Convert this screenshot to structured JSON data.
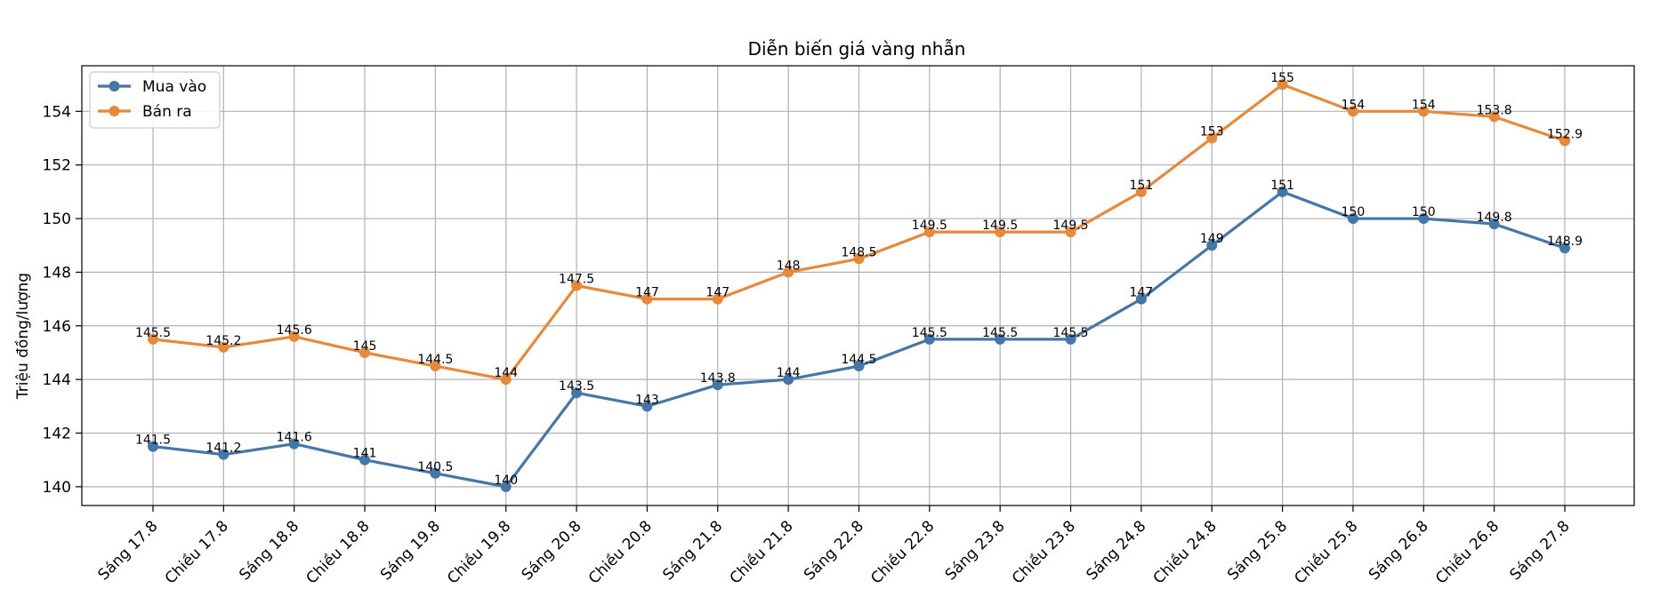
{
  "chart_data": {
    "type": "line",
    "title": "Diễn biến giá vàng nhẫn",
    "xlabel": "",
    "ylabel": "Triệu đồng/lượng",
    "categories": [
      "Sáng 17.8",
      "Chiều 17.8",
      "Sáng 18.8",
      "Chiều 18.8",
      "Sáng 19.8",
      "Chiều 19.8",
      "Sáng 20.8",
      "Chiều 20.8",
      "Sáng 21.8",
      "Chiều 21.8",
      "Sáng 22.8",
      "Chiều 22.8",
      "Sáng 23.8",
      "Chiều 23.8",
      "Sáng 24.8",
      "Chiều 24.8",
      "Sáng 25.8",
      "Chiều 25.8",
      "Sáng 26.8",
      "Chiều 26.8",
      "Sáng 27.8"
    ],
    "series": [
      {
        "name": "Mua vào",
        "color": "#4576a8",
        "values": [
          141.5,
          141.2,
          141.6,
          141,
          140.5,
          140,
          143.5,
          143,
          143.8,
          144,
          144.5,
          145.5,
          145.5,
          145.5,
          147,
          149,
          151,
          150,
          150,
          149.8,
          148.9
        ]
      },
      {
        "name": "Bán ra",
        "color": "#e8893a",
        "values": [
          145.5,
          145.2,
          145.6,
          145,
          144.5,
          144,
          147.5,
          147,
          147,
          148,
          148.5,
          149.5,
          149.5,
          149.5,
          151,
          153,
          155,
          154,
          154,
          153.8,
          152.9
        ]
      }
    ],
    "ylim": [
      139.3,
      155.7
    ],
    "yticks": [
      140,
      142,
      144,
      146,
      148,
      150,
      152,
      154
    ],
    "grid": true,
    "legend": "top-left"
  }
}
